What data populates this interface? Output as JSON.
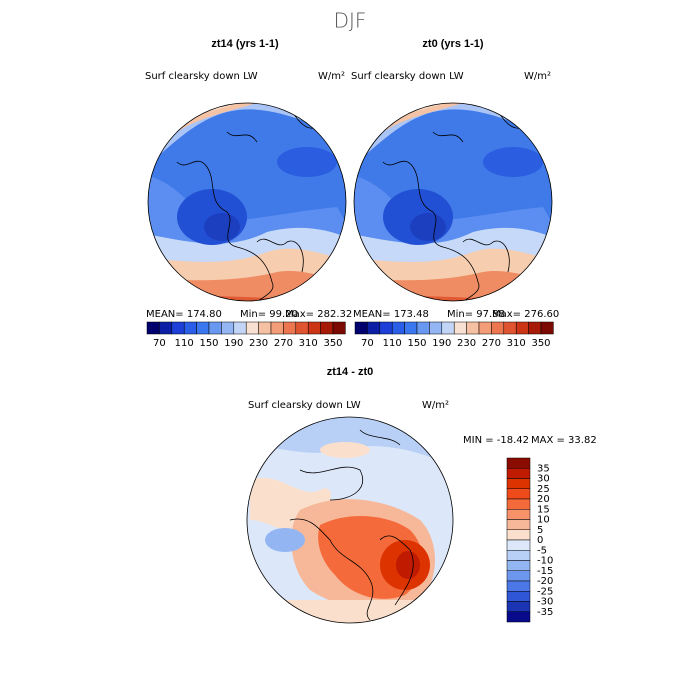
{
  "title": "DJF",
  "panels": [
    {
      "title": "zt14 (yrs 1-1)",
      "variable": "Surf clearsky down LW",
      "units": "W/m²",
      "stats": [
        "MEAN= 174.80",
        "Min=  99.20",
        "Max= 282.32"
      ]
    },
    {
      "title": "zt0 (yrs 1-1)",
      "variable": "Surf clearsky down LW",
      "units": "W/m²",
      "stats": [
        "MEAN= 173.48",
        "Min=  97.88",
        "Max= 276.60"
      ]
    },
    {
      "title": "zt14 - zt0",
      "variable": "Surf clearsky down LW",
      "units": "W/m²",
      "stats": [
        "MIN = -18.42",
        "MAX =  33.82"
      ]
    }
  ],
  "colorbar_top": {
    "ticks": [
      70,
      110,
      150,
      190,
      230,
      270,
      310,
      350
    ],
    "colors": [
      "#00006e",
      "#0a1fa5",
      "#1c3fd8",
      "#2a5de8",
      "#3b78f0",
      "#6898f2",
      "#94b6f4",
      "#c3d5f7",
      "#f8e0d2",
      "#f6c0a2",
      "#f29c78",
      "#ec7650",
      "#e05530",
      "#cc3416",
      "#a81a08",
      "#7a0a02"
    ]
  },
  "colorbar_diff": {
    "ticks": [
      35,
      30,
      25,
      20,
      15,
      10,
      5,
      0,
      -5,
      -10,
      -15,
      -20,
      -25,
      -30,
      -35
    ],
    "colors": [
      "#8a0c00",
      "#c01a00",
      "#dd3300",
      "#ef4a1a",
      "#f46a3a",
      "#f6916a",
      "#f7b89a",
      "#fae0cc",
      "#dce8fa",
      "#b9d0f6",
      "#93b5f2",
      "#6d97ee",
      "#4b78e6",
      "#2f56d6",
      "#1a34b4",
      "#070a8a"
    ]
  }
}
